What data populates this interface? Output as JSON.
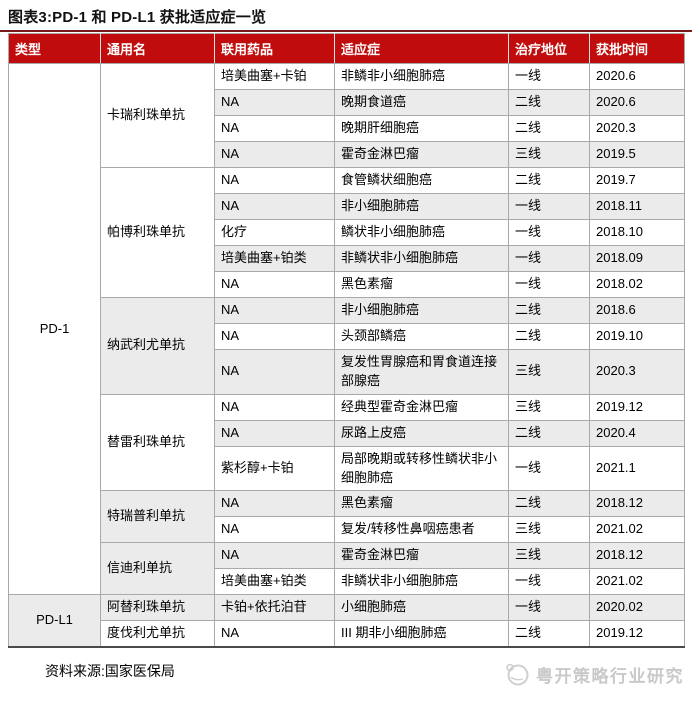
{
  "title": "图表3:PD-1 和 PD-L1 获批适应症一览",
  "colors": {
    "header_bg": "#C00C0C",
    "title_rule": "#7A1B1B",
    "row_alt": "#EBEBEB",
    "cell_border": "#A9A9A9",
    "table_bottom_border": "#4A4A4A",
    "watermark_text": "#C9C9C9"
  },
  "table": {
    "columns": [
      "类型",
      "通用名",
      "联用药品",
      "适应症",
      "治疗地位",
      "获批时间"
    ],
    "groups": [
      {
        "type": "PD-1",
        "drugs": [
          {
            "name": "卡瑞利珠单抗",
            "rows": [
              [
                "培美曲塞+卡铂",
                "非鳞非小细胞肺癌",
                "一线",
                "2020.6"
              ],
              [
                "NA",
                "晚期食道癌",
                "二线",
                "2020.6"
              ],
              [
                "NA",
                "晚期肝细胞癌",
                "二线",
                "2020.3"
              ],
              [
                "NA",
                "霍奇金淋巴瘤",
                "三线",
                "2019.5"
              ]
            ]
          },
          {
            "name": "帕博利珠单抗",
            "rows": [
              [
                "NA",
                "食管鳞状细胞癌",
                "二线",
                "2019.7"
              ],
              [
                "NA",
                "非小细胞肺癌",
                "一线",
                "2018.11"
              ],
              [
                "化疗",
                "鳞状非小细胞肺癌",
                "一线",
                "2018.10"
              ],
              [
                "培美曲塞+铂类",
                "非鳞状非小细胞肺癌",
                "一线",
                "2018.09"
              ],
              [
                "NA",
                "黑色素瘤",
                "一线",
                "2018.02"
              ]
            ]
          },
          {
            "name": "纳武利尤单抗",
            "rows": [
              [
                "NA",
                "非小细胞肺癌",
                "二线",
                "2018.6"
              ],
              [
                "NA",
                "头颈部鳞癌",
                "二线",
                "2019.10"
              ],
              [
                "NA",
                "复发性胃腺癌和胃食道连接部腺癌",
                "三线",
                "2020.3"
              ]
            ]
          },
          {
            "name": "替雷利珠单抗",
            "rows": [
              [
                "NA",
                "经典型霍奇金淋巴瘤",
                "三线",
                "2019.12"
              ],
              [
                "NA",
                "尿路上皮癌",
                "二线",
                "2020.4"
              ],
              [
                "紫杉醇+卡铂",
                "局部晚期或转移性鳞状非小细胞肺癌",
                "一线",
                "2021.1"
              ]
            ]
          },
          {
            "name": "特瑞普利单抗",
            "rows": [
              [
                "NA",
                "黑色素瘤",
                "二线",
                "2018.12"
              ],
              [
                "NA",
                "复发/转移性鼻咽癌患者",
                "三线",
                "2021.02"
              ]
            ]
          },
          {
            "name": "信迪利单抗",
            "rows": [
              [
                "NA",
                "霍奇金淋巴瘤",
                "三线",
                "2018.12"
              ],
              [
                "培美曲塞+铂类",
                "非鳞状非小细胞肺癌",
                "一线",
                "2021.02"
              ]
            ]
          }
        ]
      },
      {
        "type": "PD-L1",
        "drugs": [
          {
            "name": "阿替利珠单抗",
            "rows": [
              [
                "卡铂+依托泊苷",
                "小细胞肺癌",
                "一线",
                "2020.02"
              ]
            ]
          },
          {
            "name": "度伐利尤单抗",
            "rows": [
              [
                "NA",
                "III 期非小细胞肺癌",
                "二线",
                "2019.12"
              ]
            ]
          }
        ]
      }
    ]
  },
  "footer": {
    "source": "资料来源:国家医保局"
  },
  "watermark": {
    "text": "粤开策略行业研究",
    "logo": "globe-swirl-icon"
  }
}
